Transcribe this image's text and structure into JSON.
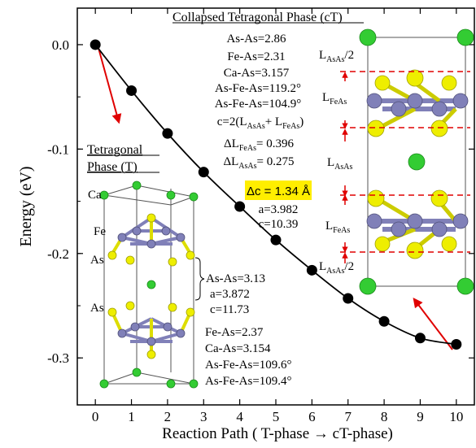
{
  "chart_data": {
    "type": "line",
    "xlabel": "Reaction Path ( T-phase → cT-phase)",
    "ylabel": "Energy (eV)",
    "xlim": [
      -0.5,
      10.5
    ],
    "ylim": [
      -0.345,
      0.035
    ],
    "x_ticks": [
      0,
      1,
      2,
      3,
      4,
      5,
      6,
      7,
      8,
      9,
      10
    ],
    "y_ticks": [
      0.0,
      -0.1,
      -0.2,
      -0.3
    ],
    "y_tick_labels": [
      "0.0",
      "-0.1",
      "-0.2",
      "-0.3"
    ],
    "grid": false,
    "x": [
      0,
      1,
      2,
      3,
      4,
      5,
      6,
      7,
      8,
      9,
      10
    ],
    "y": [
      0.0,
      -0.044,
      -0.085,
      -0.122,
      -0.155,
      -0.187,
      -0.216,
      -0.243,
      -0.265,
      -0.281,
      -0.287
    ],
    "annotations": {
      "ct_title": "Collapsed Tetragonal Phase (cT)",
      "ct_lines": [
        "As-As=2.86",
        "Fe-As=2.31",
        "Ca-As=3.157",
        "As-Fe-As=119.2°",
        "As-Fe-As=104.9°",
        "c=2(L",
        "ΔL",
        "ΔL"
      ],
      "ct_formula": {
        "pre": "c=2(L",
        "sub1": "AsAs",
        "mid": "+ L",
        "sub2": "FeAs",
        "post": ")"
      },
      "dl_feas": {
        "pre": "ΔL",
        "sub": "FeAs",
        "post": "= 0.396"
      },
      "dl_asas": {
        "pre": "ΔL",
        "sub": "AsAs",
        "post": "= 0.275"
      },
      "delta_c": "Δc = 1.34 Å",
      "ct_a": "a=3.982",
      "ct_c": "c=10.39",
      "t_title_1": "Tetragonal",
      "t_title_2": "Phase (T)",
      "t_lines": [
        "As-As=3.13",
        "a=3.872",
        "c=11.73",
        "Fe-As=2.37",
        "Ca-As=3.154",
        "As-Fe-As=109.6°",
        "As-Fe-As=109.4°"
      ],
      "atom_labels": [
        "Ca",
        "Fe",
        "As",
        "As"
      ],
      "length_labels": {
        "l_asas_top": {
          "pre": "L",
          "sub": "AsAs",
          "post": "/2"
        },
        "l_feas_top": {
          "pre": "L",
          "sub": "FeAs",
          "post": ""
        },
        "l_asas_mid": {
          "pre": "L",
          "sub": "AsAs",
          "post": ""
        },
        "l_feas_bot": {
          "pre": "L",
          "sub": "FeAs",
          "post": ""
        },
        "l_asas_bot": {
          "pre": "L",
          "sub": "AsAs",
          "post": "/2"
        }
      }
    }
  },
  "colors": {
    "curve": "#000000",
    "marker": "#000000",
    "arrow": "#e00000",
    "highlight": "#ffee00",
    "ca_atom": "#33cc33",
    "fe_atom": "#8080b8",
    "as_atom": "#eeee00"
  }
}
